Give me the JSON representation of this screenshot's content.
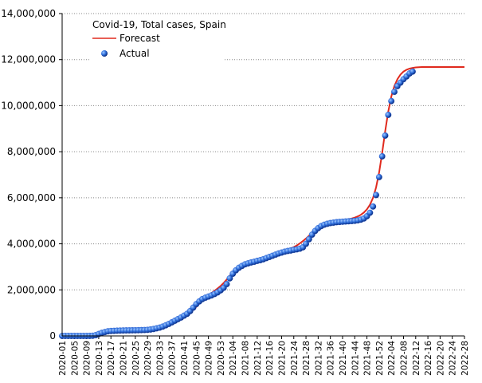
{
  "chart_data": {
    "type": "line",
    "title": "Covid-19, Total cases, Spain",
    "categories": [
      "2020-01",
      null,
      null,
      null,
      "2020-05",
      null,
      null,
      null,
      "2020-09",
      null,
      null,
      null,
      "2020-13",
      null,
      null,
      null,
      "2020-17",
      null,
      null,
      null,
      "2020-21",
      null,
      null,
      null,
      "2020-25",
      null,
      null,
      null,
      "2020-29",
      null,
      null,
      null,
      "2020-33",
      null,
      null,
      null,
      "2020-37",
      null,
      null,
      null,
      "2020-41",
      null,
      null,
      null,
      "2020-45",
      null,
      null,
      null,
      "2020-49",
      null,
      null,
      null,
      "2020-53",
      null,
      null,
      null,
      "2021-04",
      null,
      null,
      null,
      "2021-08",
      null,
      null,
      null,
      "2021-12",
      null,
      null,
      null,
      "2021-16",
      null,
      null,
      null,
      "2021-20",
      null,
      null,
      null,
      "2021-24",
      null,
      null,
      null,
      "2021-28",
      null,
      null,
      null,
      "2021-32",
      null,
      null,
      null,
      "2021-36",
      null,
      null,
      null,
      "2021-40",
      null,
      null,
      null,
      "2021-44",
      null,
      null,
      null,
      "2021-48",
      null,
      null,
      null,
      "2021-52",
      null,
      null,
      null,
      "2022-04",
      null,
      null,
      null,
      "2022-08",
      null,
      null,
      null,
      "2022-12",
      null,
      null,
      null,
      "2022-16",
      null,
      null,
      null,
      "2022-20",
      null,
      null,
      null,
      "2022-24",
      null,
      null,
      null,
      "2022-28"
    ],
    "series": [
      {
        "name": "Forecast",
        "type": "line",
        "color": "#e02a1e",
        "values": [
          0,
          0,
          0,
          0,
          0,
          0,
          0,
          0,
          0,
          0,
          10000,
          30000,
          60000,
          100000,
          140000,
          170000,
          190000,
          205000,
          215000,
          222000,
          228000,
          232000,
          236000,
          240000,
          244000,
          248000,
          252000,
          258000,
          266000,
          278000,
          295000,
          320000,
          350000,
          390000,
          440000,
          495000,
          560000,
          630000,
          700000,
          775000,
          850000,
          930000,
          1020000,
          1130000,
          1260000,
          1400000,
          1530000,
          1650000,
          1760000,
          1860000,
          1960000,
          2060000,
          2170000,
          2300000,
          2450000,
          2610000,
          2760000,
          2880000,
          2970000,
          3040000,
          3100000,
          3150000,
          3190000,
          3230000,
          3270000,
          3310000,
          3350000,
          3400000,
          3450000,
          3500000,
          3550000,
          3600000,
          3650000,
          3700000,
          3750000,
          3800000,
          3860000,
          3930000,
          4020000,
          4120000,
          4230000,
          4350000,
          4470000,
          4580000,
          4680000,
          4760000,
          4830000,
          4880000,
          4920000,
          4950000,
          4980000,
          5000000,
          5020000,
          5040000,
          5070000,
          5100000,
          5140000,
          5190000,
          5260000,
          5360000,
          5500000,
          5700000,
          6000000,
          6450000,
          7100000,
          7950000,
          8900000,
          9750000,
          10400000,
          10850000,
          11150000,
          11350000,
          11480000,
          11560000,
          11610000,
          11640000,
          11660000,
          11670000,
          11680000,
          11680000,
          11680000,
          11680000,
          11680000,
          11680000,
          11680000,
          11680000,
          11680000,
          11680000,
          11680000,
          11680000,
          11680000,
          11680000,
          11680000
        ]
      },
      {
        "name": "Actual",
        "type": "scatter",
        "color": "#2255cc",
        "values": [
          0,
          0,
          0,
          0,
          0,
          0,
          0,
          0,
          0,
          2000,
          8000,
          33000,
          85000,
          131000,
          166000,
          200000,
          215000,
          220000,
          228000,
          232000,
          236000,
          239000,
          242000,
          244000,
          246000,
          249000,
          252000,
          256000,
          264000,
          280000,
          300000,
          330000,
          360000,
          405000,
          460000,
          520000,
          590000,
          660000,
          730000,
          800000,
          880000,
          960000,
          1080000,
          1230000,
          1380000,
          1500000,
          1600000,
          1660000,
          1710000,
          1760000,
          1820000,
          1890000,
          1980000,
          2090000,
          2250000,
          2500000,
          2700000,
          2850000,
          2960000,
          3040000,
          3110000,
          3150000,
          3190000,
          3220000,
          3260000,
          3290000,
          3330000,
          3380000,
          3430000,
          3480000,
          3530000,
          3580000,
          3620000,
          3660000,
          3690000,
          3710000,
          3740000,
          3760000,
          3790000,
          3850000,
          4000000,
          4200000,
          4400000,
          4560000,
          4680000,
          4770000,
          4830000,
          4870000,
          4900000,
          4920000,
          4940000,
          4950000,
          4960000,
          4970000,
          4980000,
          4990000,
          5000000,
          5020000,
          5050000,
          5100000,
          5200000,
          5350000,
          5620000,
          6120000,
          6900000,
          7800000,
          8700000,
          9600000,
          10200000,
          10600000,
          10850000,
          11000000,
          11150000,
          11270000,
          11400000,
          11480000,
          null,
          null,
          null,
          null,
          null,
          null,
          null,
          null,
          null,
          null,
          null,
          null,
          null,
          null,
          null,
          null,
          null
        ]
      }
    ],
    "ylim": [
      0,
      14000000
    ],
    "yticks": [
      0,
      {
        "value": 2000000,
        "label": "2,000,000"
      },
      {
        "value": 4000000,
        "label": "4,000,000"
      },
      {
        "value": 6000000,
        "label": "6,000,000"
      },
      {
        "value": 8000000,
        "label": "8,000,000"
      },
      {
        "value": 10000000,
        "label": "10,000,000"
      },
      {
        "value": 12000000,
        "label": "12,000,000"
      },
      {
        "value": 14000000,
        "label": "14,000,000"
      }
    ],
    "grid": true
  }
}
